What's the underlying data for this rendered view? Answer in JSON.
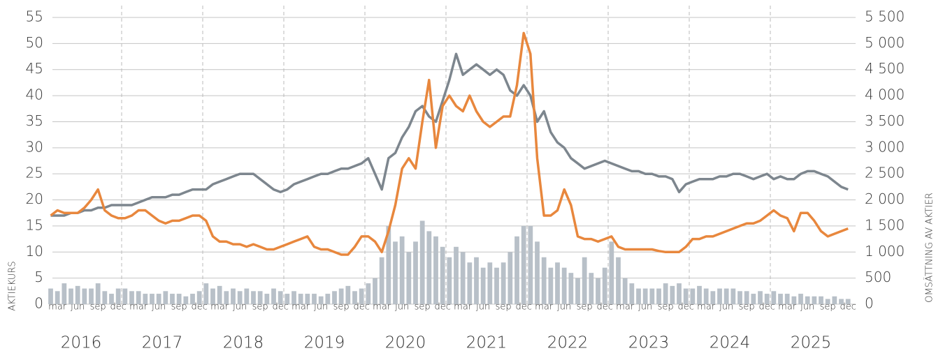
{
  "chart_data": {
    "type": "line",
    "ylabel": "AKTIEKURS",
    "y2label": "OMSÄTTNING AV AKTIER",
    "x": [
      "2016-02",
      "2016-03",
      "2016-04",
      "2016-05",
      "2016-06",
      "2016-07",
      "2016-08",
      "2016-09",
      "2016-10",
      "2016-11",
      "2016-12",
      "2017-01",
      "2017-02",
      "2017-03",
      "2017-04",
      "2017-05",
      "2017-06",
      "2017-07",
      "2017-08",
      "2017-09",
      "2017-10",
      "2017-11",
      "2017-12",
      "2018-01",
      "2018-02",
      "2018-03",
      "2018-04",
      "2018-05",
      "2018-06",
      "2018-07",
      "2018-08",
      "2018-09",
      "2018-10",
      "2018-11",
      "2018-12",
      "2019-01",
      "2019-02",
      "2019-03",
      "2019-04",
      "2019-05",
      "2019-06",
      "2019-07",
      "2019-08",
      "2019-09",
      "2019-10",
      "2019-11",
      "2019-12",
      "2020-01",
      "2020-02",
      "2020-03",
      "2020-04",
      "2020-05",
      "2020-06",
      "2020-07",
      "2020-08",
      "2020-09",
      "2020-10",
      "2020-11",
      "2020-12",
      "2021-01",
      "2021-02",
      "2021-03",
      "2021-04",
      "2021-05",
      "2021-06",
      "2021-07",
      "2021-08",
      "2021-09",
      "2021-10",
      "2021-11",
      "2021-12",
      "2022-01",
      "2022-02",
      "2022-03",
      "2022-04",
      "2022-05",
      "2022-06",
      "2022-07",
      "2022-08",
      "2022-09",
      "2022-10",
      "2022-11",
      "2022-12",
      "2023-01",
      "2023-02",
      "2023-03",
      "2023-04",
      "2023-05",
      "2023-06",
      "2023-07",
      "2023-08",
      "2023-09",
      "2023-10",
      "2023-11",
      "2023-12",
      "2024-01",
      "2024-02",
      "2024-03",
      "2024-04",
      "2024-05",
      "2024-06",
      "2024-07",
      "2024-08",
      "2024-09",
      "2024-10",
      "2024-11",
      "2024-12",
      "2025-01",
      "2025-02",
      "2025-03",
      "2025-04",
      "2025-05",
      "2025-06",
      "2025-07",
      "2025-08",
      "2025-09",
      "2025-10",
      "2025-11",
      "2025-12"
    ],
    "series": [
      {
        "type": "bar",
        "axis": "y2",
        "color": "#b8c0c8",
        "values": [
          300,
          250,
          400,
          300,
          350,
          300,
          300,
          400,
          250,
          200,
          300,
          300,
          250,
          250,
          200,
          200,
          200,
          250,
          200,
          200,
          150,
          200,
          250,
          400,
          300,
          350,
          250,
          300,
          250,
          300,
          250,
          250,
          200,
          300,
          250,
          200,
          250,
          200,
          200,
          200,
          150,
          200,
          250,
          300,
          350,
          250,
          300,
          400,
          500,
          900,
          1500,
          1200,
          1300,
          1000,
          1200,
          1600,
          1400,
          1300,
          1100,
          900,
          1100,
          1000,
          800,
          900,
          700,
          800,
          700,
          800,
          1000,
          1300,
          1500,
          1500,
          1200,
          900,
          700,
          800,
          700,
          600,
          500,
          900,
          600,
          500,
          700,
          1200,
          900,
          500,
          400,
          300,
          300,
          300,
          300,
          400,
          350,
          400,
          300,
          300,
          350,
          300,
          250,
          300,
          300,
          300,
          250,
          250,
          200,
          250,
          200,
          250,
          200,
          200,
          150,
          200,
          150,
          150,
          150,
          100,
          150,
          100,
          100
        ]
      },
      {
        "type": "line",
        "color": "#7d868e",
        "values": [
          17,
          17,
          17,
          17.5,
          17.5,
          18,
          18,
          18.5,
          18.5,
          19,
          19,
          19,
          19,
          19.5,
          20,
          20.5,
          20.5,
          20.5,
          21,
          21,
          21.5,
          22,
          22,
          22,
          23,
          23.5,
          24,
          24.5,
          25,
          25,
          25,
          24,
          23,
          22,
          21.5,
          22,
          23,
          23.5,
          24,
          24.5,
          25,
          25,
          25.5,
          26,
          26,
          26.5,
          27,
          28,
          25,
          22,
          28,
          29,
          32,
          34,
          37,
          38,
          36,
          35,
          39,
          43,
          48,
          44,
          45,
          46,
          45,
          44,
          45,
          44,
          41,
          40,
          42,
          40,
          35,
          37,
          33,
          31,
          30,
          28,
          27,
          26,
          26.5,
          27,
          27.5,
          27,
          26.5,
          26,
          25.5,
          25.5,
          25,
          25,
          24.5,
          24.5,
          24,
          21.5,
          23,
          23.5,
          24,
          24,
          24,
          24.5,
          24.5,
          25,
          25,
          24.5,
          24,
          24.5,
          25,
          24,
          24.5,
          24,
          24,
          25,
          25.5,
          25.5,
          25,
          24.5,
          23.5,
          22.5,
          22
        ]
      },
      {
        "type": "line",
        "color": "#e8873d",
        "values": [
          17,
          18,
          17.5,
          17.5,
          17.5,
          18.5,
          20,
          22,
          18,
          17,
          16.5,
          16.5,
          17,
          18,
          18,
          17,
          16,
          15.5,
          16,
          16,
          16.5,
          17,
          17,
          16,
          13,
          12,
          12,
          11.5,
          11.5,
          11,
          11.5,
          11,
          10.5,
          10.5,
          11,
          11.5,
          12,
          12.5,
          13,
          11,
          10.5,
          10.5,
          10,
          9.5,
          9.5,
          11,
          13,
          13,
          12,
          10,
          14,
          19,
          26,
          28,
          26,
          35,
          43,
          30,
          38,
          40,
          38,
          37,
          40,
          37,
          35,
          34,
          35,
          36,
          36,
          42,
          52,
          48,
          28,
          17,
          17,
          18,
          22,
          19,
          13,
          12.5,
          12.5,
          12,
          12.5,
          13,
          11,
          10.5,
          10.5,
          10.5,
          10.5,
          10.5,
          10.2,
          10,
          10,
          10,
          11,
          12.5,
          12.5,
          13,
          13,
          13.5,
          14,
          14.5,
          15,
          15.5,
          15.5,
          16,
          17,
          18,
          17,
          16.5,
          14,
          17.5,
          17.5,
          16,
          14,
          13,
          13.5,
          14,
          14.5
        ]
      }
    ],
    "ylim": [
      0,
      55
    ],
    "yticks": [
      0,
      5,
      10,
      15,
      20,
      25,
      30,
      35,
      40,
      45,
      50,
      55
    ],
    "y2lim": [
      0,
      5500
    ],
    "y2ticks": [
      0,
      500,
      {
        "value": 1000,
        "label": "1 000"
      },
      {
        "value": 1500,
        "label": "1 500"
      },
      {
        "value": 2000,
        "label": "2 000"
      },
      {
        "value": 2500,
        "label": "2 500"
      },
      {
        "value": 3000,
        "label": "3 000"
      },
      {
        "value": 3500,
        "label": "3 500"
      },
      {
        "value": 4000,
        "label": "4 000"
      },
      {
        "value": 4500,
        "label": "4 500"
      },
      {
        "value": 5000,
        "label": "5 000"
      },
      {
        "value": 5500,
        "label": "5 500"
      }
    ],
    "xticks": [
      {
        "value": "2016-03",
        "label": "mar"
      },
      {
        "value": "2016-06",
        "label": "jun"
      },
      {
        "value": "2016-09",
        "label": "sep"
      },
      {
        "value": "2016-12",
        "label": "dec"
      },
      {
        "value": "2017-03",
        "label": "mar"
      },
      {
        "value": "2017-06",
        "label": "jun"
      },
      {
        "value": "2017-09",
        "label": "sep"
      },
      {
        "value": "2017-12",
        "label": "dec"
      },
      {
        "value": "2018-03",
        "label": "mar"
      },
      {
        "value": "2018-06",
        "label": "jun"
      },
      {
        "value": "2018-09",
        "label": "sep"
      },
      {
        "value": "2018-12",
        "label": "dec"
      },
      {
        "value": "2019-03",
        "label": "mar"
      },
      {
        "value": "2019-06",
        "label": "jun"
      },
      {
        "value": "2019-09",
        "label": "sep"
      },
      {
        "value": "2019-12",
        "label": "dec"
      },
      {
        "value": "2020-03",
        "label": "mar"
      },
      {
        "value": "2020-06",
        "label": "jun"
      },
      {
        "value": "2020-09",
        "label": "sep"
      },
      {
        "value": "2020-12",
        "label": "dec"
      },
      {
        "value": "2021-03",
        "label": "mar"
      },
      {
        "value": "2021-06",
        "label": "jun"
      },
      {
        "value": "2021-09",
        "label": "sep"
      },
      {
        "value": "2021-12",
        "label": "dec"
      },
      {
        "value": "2022-03",
        "label": "mar"
      },
      {
        "value": "2022-06",
        "label": "jun"
      },
      {
        "value": "2022-09",
        "label": "sep"
      },
      {
        "value": "2022-12",
        "label": "dec"
      },
      {
        "value": "2023-03",
        "label": "mar"
      },
      {
        "value": "2023-06",
        "label": "jun"
      },
      {
        "value": "2023-09",
        "label": "sep"
      },
      {
        "value": "2023-12",
        "label": "dec"
      },
      {
        "value": "2024-03",
        "label": "mar"
      },
      {
        "value": "2024-06",
        "label": "jun"
      },
      {
        "value": "2024-09",
        "label": "sep"
      },
      {
        "value": "2024-12",
        "label": "dec"
      },
      {
        "value": "2025-03",
        "label": "mar"
      },
      {
        "value": "2025-06",
        "label": "jun"
      },
      {
        "value": "2025-09",
        "label": "sep"
      },
      {
        "value": "2025-12",
        "label": "dec"
      }
    ],
    "years": [
      "2016",
      "2017",
      "2018",
      "2019",
      "2020",
      "2021",
      "2022",
      "2023",
      "2024",
      "2025"
    ],
    "grid": true
  }
}
